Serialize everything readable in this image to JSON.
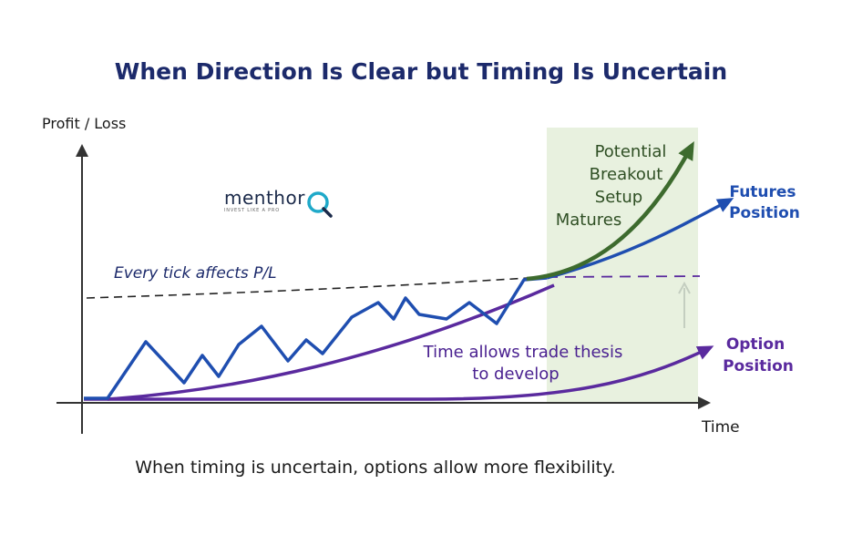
{
  "title": "When Direction Is Clear but Timing Is Uncertain",
  "caption": "When timing is uncertain, options allow more flexibility.",
  "axes": {
    "y_label": "Profit / Loss",
    "x_label": "Time"
  },
  "logo": {
    "word": "menthor",
    "letter": "Q",
    "tagline": "INVEST LIKE A PRO"
  },
  "annotations": {
    "dashed": "Every tick affects P/L",
    "breakout": [
      "Potential",
      "Breakout",
      "Setup",
      "Matures"
    ],
    "futures": [
      "Futures",
      "Position"
    ],
    "option": [
      "Option",
      "Position"
    ],
    "thesis": [
      "Time allows trade thesis",
      "to develop"
    ]
  },
  "colors": {
    "title": "#1c2a6b",
    "futures": "#1f4eb0",
    "option": "#5a2a9e",
    "breakout": "#3d6b2e",
    "dashed": "#222222",
    "axis": "#333333",
    "highlight": "#e4efd9"
  },
  "icons": [
    "magnifier-q-icon",
    "up-arrow-icon"
  ]
}
